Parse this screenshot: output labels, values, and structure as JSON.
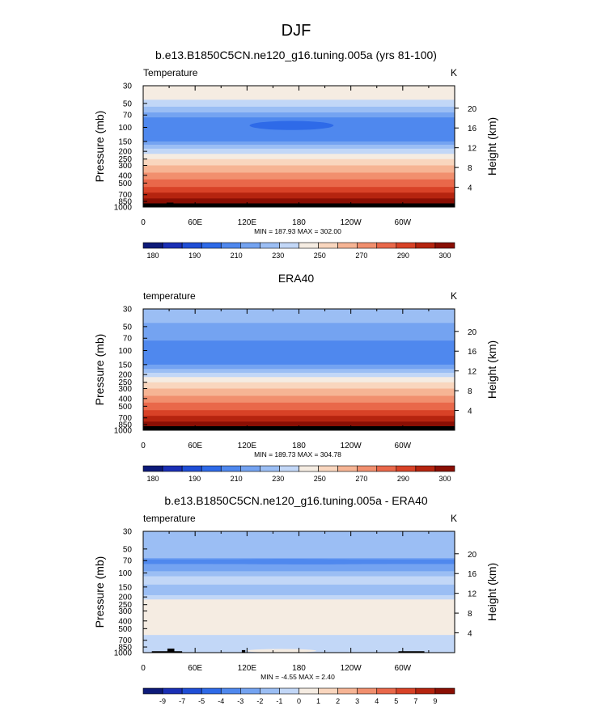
{
  "figure": {
    "title": "DJF"
  },
  "chart_data": [
    {
      "type": "heatmap",
      "title": "b.e13.B1850C5CN.ne120_g16.tuning.005a (yrs 81-100)",
      "left_label": "Temperature",
      "right_label": "K",
      "ylabel": "Pressure (mb)",
      "y2label": "Height (km)",
      "xticks": [
        "0",
        "60E",
        "120E",
        "180",
        "120W",
        "60W"
      ],
      "yticks": [
        30,
        50,
        70,
        100,
        150,
        200,
        250,
        300,
        400,
        500,
        700,
        850,
        1000
      ],
      "y2ticks": [
        4,
        8,
        12,
        16,
        20
      ],
      "stats": "MIN = 187.93  MAX = 302.00",
      "min": 187.93,
      "max": 302.0,
      "colorbar_labels": [
        "180",
        "190",
        "210",
        "230",
        "250",
        "270",
        "290",
        "300"
      ],
      "levels": [
        180,
        185,
        190,
        200,
        210,
        220,
        230,
        240,
        250,
        260,
        270,
        280,
        290,
        295,
        300
      ],
      "profile": [
        [
          30,
          8
        ],
        [
          45,
          7
        ],
        [
          55,
          6
        ],
        [
          65,
          5
        ],
        [
          75,
          4
        ],
        [
          100,
          4
        ],
        [
          130,
          4
        ],
        [
          150,
          5
        ],
        [
          165,
          6
        ],
        [
          185,
          7
        ],
        [
          215,
          8
        ],
        [
          250,
          9
        ],
        [
          300,
          10
        ],
        [
          370,
          11
        ],
        [
          450,
          12
        ],
        [
          560,
          13
        ],
        [
          660,
          14
        ],
        [
          780,
          15
        ],
        [
          900,
          16
        ],
        [
          1000,
          16
        ]
      ],
      "features": [
        {
          "level_class": 3,
          "lon_range": [
            123,
            220
          ],
          "p_range": [
            83,
            108
          ]
        }
      ],
      "terrain": [
        {
          "lon_range": [
            14,
            43
          ],
          "p_top": 970
        },
        {
          "lon_range": [
            27,
            35
          ],
          "p_top": 880
        },
        {
          "lon_range": [
            298,
            320
          ],
          "p_top": 970
        }
      ]
    },
    {
      "type": "heatmap",
      "title": "ERA40",
      "left_label": "temperature",
      "right_label": "K",
      "ylabel": "Pressure (mb)",
      "y2label": "Height (km)",
      "xticks": [
        "0",
        "60E",
        "120E",
        "180",
        "120W",
        "60W"
      ],
      "yticks": [
        30,
        50,
        70,
        100,
        150,
        200,
        250,
        300,
        400,
        500,
        700,
        850,
        1000
      ],
      "y2ticks": [
        4,
        8,
        12,
        16,
        20
      ],
      "stats": "MIN = 189.73  MAX = 304.78",
      "min": 189.73,
      "max": 304.78,
      "colorbar_labels": [
        "180",
        "190",
        "210",
        "230",
        "250",
        "270",
        "290",
        "300"
      ],
      "levels": [
        180,
        185,
        190,
        200,
        210,
        220,
        230,
        240,
        250,
        260,
        270,
        280,
        290,
        295,
        300
      ],
      "profile": [
        [
          30,
          6
        ],
        [
          45,
          5
        ],
        [
          65,
          5
        ],
        [
          75,
          4
        ],
        [
          135,
          4
        ],
        [
          150,
          5
        ],
        [
          170,
          6
        ],
        [
          190,
          7
        ],
        [
          215,
          8
        ],
        [
          250,
          9
        ],
        [
          300,
          10
        ],
        [
          370,
          11
        ],
        [
          450,
          12
        ],
        [
          560,
          13
        ],
        [
          660,
          14
        ],
        [
          780,
          15
        ],
        [
          890,
          16
        ],
        [
          1000,
          16
        ]
      ],
      "features": [],
      "terrain": []
    },
    {
      "type": "heatmap",
      "title": "b.e13.B1850C5CN.ne120_g16.tuning.005a - ERA40",
      "left_label": "temperature",
      "right_label": "K",
      "ylabel": "Pressure (mb)",
      "y2label": "Height (km)",
      "xticks": [
        "0",
        "60E",
        "120E",
        "180",
        "120W",
        "60W"
      ],
      "yticks": [
        30,
        50,
        70,
        100,
        150,
        200,
        250,
        300,
        400,
        500,
        700,
        850,
        1000
      ],
      "y2ticks": [
        4,
        8,
        12,
        16,
        20
      ],
      "stats": "MIN = -4.55  MAX = 2.40",
      "min": -4.55,
      "max": 2.4,
      "colorbar_labels": [
        "-9",
        "-7",
        "-5",
        "-4",
        "-3",
        "-2",
        "-1",
        "0",
        "1",
        "2",
        "3",
        "4",
        "5",
        "7",
        "9"
      ],
      "levels": [
        -9,
        -7,
        -5,
        -4,
        -3,
        -2,
        -1,
        0,
        1,
        2,
        3,
        4,
        5,
        7,
        9
      ],
      "profile": [
        [
          30,
          6
        ],
        [
          55,
          6
        ],
        [
          65,
          5
        ],
        [
          80,
          5
        ],
        [
          95,
          6
        ],
        [
          110,
          7
        ],
        [
          140,
          6
        ],
        [
          190,
          7
        ],
        [
          215,
          8
        ],
        [
          520,
          8
        ],
        [
          600,
          7
        ],
        [
          1000,
          7
        ]
      ],
      "features": [
        {
          "level_class": 4,
          "lon_range": [
            0,
            360
          ],
          "p_range": [
            65,
            80
          ]
        },
        {
          "level_class": 7,
          "lon_range": [
            0,
            360
          ],
          "p_range": [
            110,
            140
          ]
        },
        {
          "level_class": 8,
          "lon_range": [
            25,
            250
          ],
          "p_range": [
            220,
            560
          ]
        },
        {
          "level_class": 8,
          "lon_range": [
            120,
            200
          ],
          "p_range": [
            900,
            1000
          ]
        }
      ],
      "terrain": [
        {
          "lon_range": [
            10,
            45
          ],
          "p_top": 960
        },
        {
          "lon_range": [
            28,
            36
          ],
          "p_top": 890
        },
        {
          "lon_range": [
            114,
            118
          ],
          "p_top": 930
        },
        {
          "lon_range": [
            295,
            325
          ],
          "p_top": 960
        }
      ]
    }
  ],
  "colors": {
    "palette": [
      "#0d1a79",
      "#1a2fb5",
      "#1f4ed6",
      "#2e6ae8",
      "#4f88ee",
      "#74a3f1",
      "#9bbef4",
      "#c2d7f7",
      "#f5ece2",
      "#f9d6be",
      "#f6b494",
      "#f18f6e",
      "#e9684a",
      "#d84227",
      "#b5240f",
      "#8a0f04"
    ],
    "terrain": "#000000",
    "frame": "#000000"
  }
}
